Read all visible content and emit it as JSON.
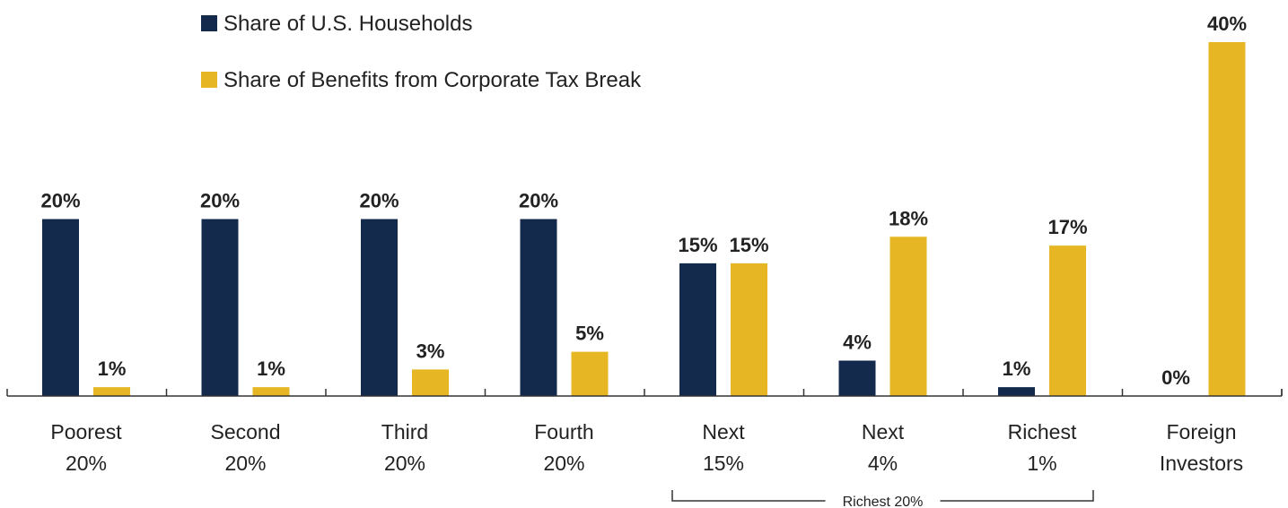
{
  "chart_data": {
    "type": "bar",
    "categories": [
      [
        "Poorest",
        "20%"
      ],
      [
        "Second",
        "20%"
      ],
      [
        "Third",
        "20%"
      ],
      [
        "Fourth",
        "20%"
      ],
      [
        "Next",
        "15%"
      ],
      [
        "Next",
        "4%"
      ],
      [
        "Richest",
        "1%"
      ],
      [
        "Foreign",
        "Investors"
      ]
    ],
    "series": [
      {
        "name": "Share of U.S. Households",
        "color": "#132a4c",
        "values": [
          20,
          20,
          20,
          20,
          15,
          4,
          1,
          0
        ],
        "labels": [
          "20%",
          "20%",
          "20%",
          "20%",
          "15%",
          "4%",
          "1%",
          "0%"
        ]
      },
      {
        "name": "Share of Benefits from Corporate Tax Break",
        "color": "#e6b624",
        "values": [
          1,
          1,
          3,
          5,
          15,
          18,
          17,
          40
        ],
        "labels": [
          "1%",
          "1%",
          "3%",
          "5%",
          "15%",
          "18%",
          "17%",
          "40%"
        ]
      }
    ],
    "ylim": [
      0,
      40
    ],
    "grid": false,
    "legend_position": "top-left",
    "bracket": {
      "label": "Richest 20%",
      "from_category": 4,
      "to_category": 6
    }
  }
}
